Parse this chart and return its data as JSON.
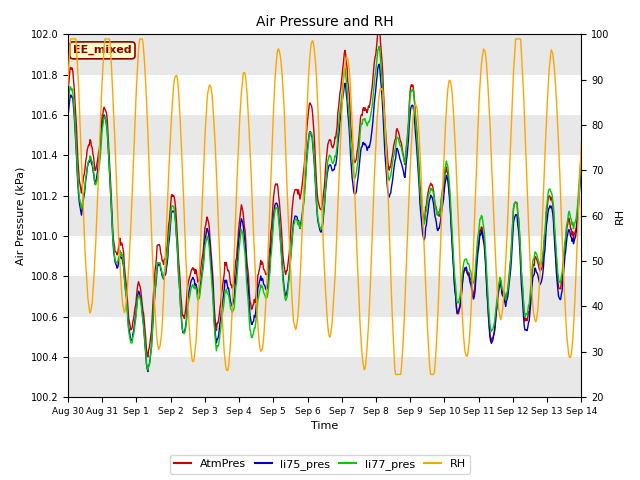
{
  "title": "Air Pressure and RH",
  "xlabel": "Time",
  "ylabel_left": "Air Pressure (kPa)",
  "ylabel_right": "RH",
  "ylim_left": [
    100.2,
    102.0
  ],
  "ylim_right": [
    20,
    100
  ],
  "annotation_text": "EE_mixed",
  "annotation_color": "#8B0000",
  "annotation_bg": "#FFFFCC",
  "fig_bg_color": "#FFFFFF",
  "plot_bg_color": "#FFFFFF",
  "band_color": "#E8E8E8",
  "colors": {
    "AtmPres": "#CC0000",
    "li75_pres": "#0000CC",
    "li77_pres": "#00CC00",
    "RH": "#FFA500"
  },
  "legend_labels": [
    "AtmPres",
    "li75_pres",
    "li77_pres",
    "RH"
  ],
  "xtick_labels": [
    "Aug 30",
    "Aug 31",
    "Sep 1",
    "Sep 2",
    "Sep 3",
    "Sep 4",
    "Sep 5",
    "Sep 6",
    "Sep 7",
    "Sep 8",
    "Sep 9",
    "Sep 10",
    "Sep 11",
    "Sep 12",
    "Sep 13",
    "Sep 14"
  ],
  "figsize": [
    6.4,
    4.8
  ],
  "dpi": 100
}
